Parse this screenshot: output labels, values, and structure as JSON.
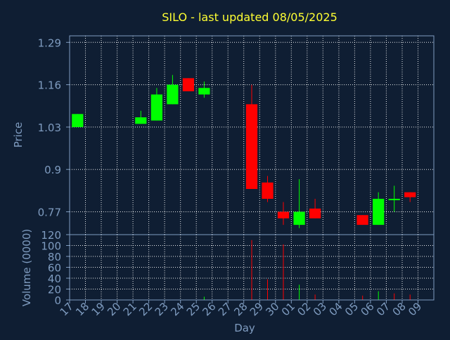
{
  "colors": {
    "background": "#0f1e33",
    "axis": "#7f9cc0",
    "grid": "#ffffff",
    "title": "#ffff33",
    "up": "#00ff00",
    "down": "#ff0000"
  },
  "chart_data": {
    "type": "candlestick",
    "title": "SILO - last updated 08/05/2025",
    "xlabel": "Day",
    "grid": true,
    "categories": [
      "17",
      "18",
      "19",
      "20",
      "21",
      "22",
      "23",
      "24",
      "25",
      "26",
      "27",
      "28",
      "29",
      "30",
      "01",
      "02",
      "03",
      "04",
      "05",
      "06",
      "07",
      "08",
      "09"
    ],
    "price_panel": {
      "ylabel": "Price",
      "ylim": [
        0.7,
        1.31
      ],
      "yticks": [
        "0.77",
        "0.9",
        "1.03",
        "1.16",
        "1.29"
      ],
      "ytick_values": [
        0.77,
        0.9,
        1.03,
        1.16,
        1.29
      ],
      "candles": [
        {
          "day": "17",
          "open": 1.03,
          "close": 1.07,
          "high": 1.07,
          "low": 1.03
        },
        {
          "day": "21",
          "open": 1.04,
          "close": 1.06,
          "high": 1.08,
          "low": 1.04
        },
        {
          "day": "22",
          "open": 1.05,
          "close": 1.13,
          "high": 1.15,
          "low": 1.05
        },
        {
          "day": "23",
          "open": 1.1,
          "close": 1.16,
          "high": 1.19,
          "low": 1.1
        },
        {
          "day": "24",
          "open": 1.18,
          "close": 1.14,
          "high": 1.18,
          "low": 1.14
        },
        {
          "day": "25",
          "open": 1.13,
          "close": 1.15,
          "high": 1.17,
          "low": 1.12
        },
        {
          "day": "28",
          "open": 1.1,
          "close": 0.84,
          "high": 1.16,
          "low": 0.84
        },
        {
          "day": "29",
          "open": 0.86,
          "close": 0.81,
          "high": 0.88,
          "low": 0.8
        },
        {
          "day": "30",
          "open": 0.77,
          "close": 0.75,
          "high": 0.8,
          "low": 0.73
        },
        {
          "day": "01",
          "open": 0.73,
          "close": 0.77,
          "high": 0.87,
          "low": 0.72
        },
        {
          "day": "02",
          "open": 0.78,
          "close": 0.75,
          "high": 0.81,
          "low": 0.75
        },
        {
          "day": "05",
          "open": 0.76,
          "close": 0.73,
          "high": 0.76,
          "low": 0.73
        },
        {
          "day": "06",
          "open": 0.73,
          "close": 0.81,
          "high": 0.83,
          "low": 0.73
        },
        {
          "day": "07",
          "open": 0.81,
          "close": 0.81,
          "high": 0.85,
          "low": 0.77
        },
        {
          "day": "08",
          "open": 0.83,
          "close": 0.815,
          "high": 0.83,
          "low": 0.8
        }
      ]
    },
    "volume_panel": {
      "ylabel": "Volume (0000)",
      "ylim": [
        0,
        120
      ],
      "yticks": [
        "0",
        "20",
        "40",
        "60",
        "80",
        "100",
        "120"
      ],
      "ytick_values": [
        0,
        20,
        40,
        60,
        80,
        100,
        120
      ],
      "bars": [
        {
          "day": "28",
          "value": 110,
          "direction": "down"
        },
        {
          "day": "29",
          "value": 38,
          "direction": "down"
        },
        {
          "day": "30",
          "value": 102,
          "direction": "down"
        },
        {
          "day": "01",
          "value": 28,
          "direction": "up"
        },
        {
          "day": "02",
          "value": 10,
          "direction": "down"
        },
        {
          "day": "05",
          "value": 8,
          "direction": "down"
        },
        {
          "day": "06",
          "value": 16,
          "direction": "up"
        },
        {
          "day": "07",
          "value": 12,
          "direction": "down"
        },
        {
          "day": "08",
          "value": 10,
          "direction": "down"
        },
        {
          "day": "25",
          "value": 6,
          "direction": "up"
        }
      ]
    }
  }
}
